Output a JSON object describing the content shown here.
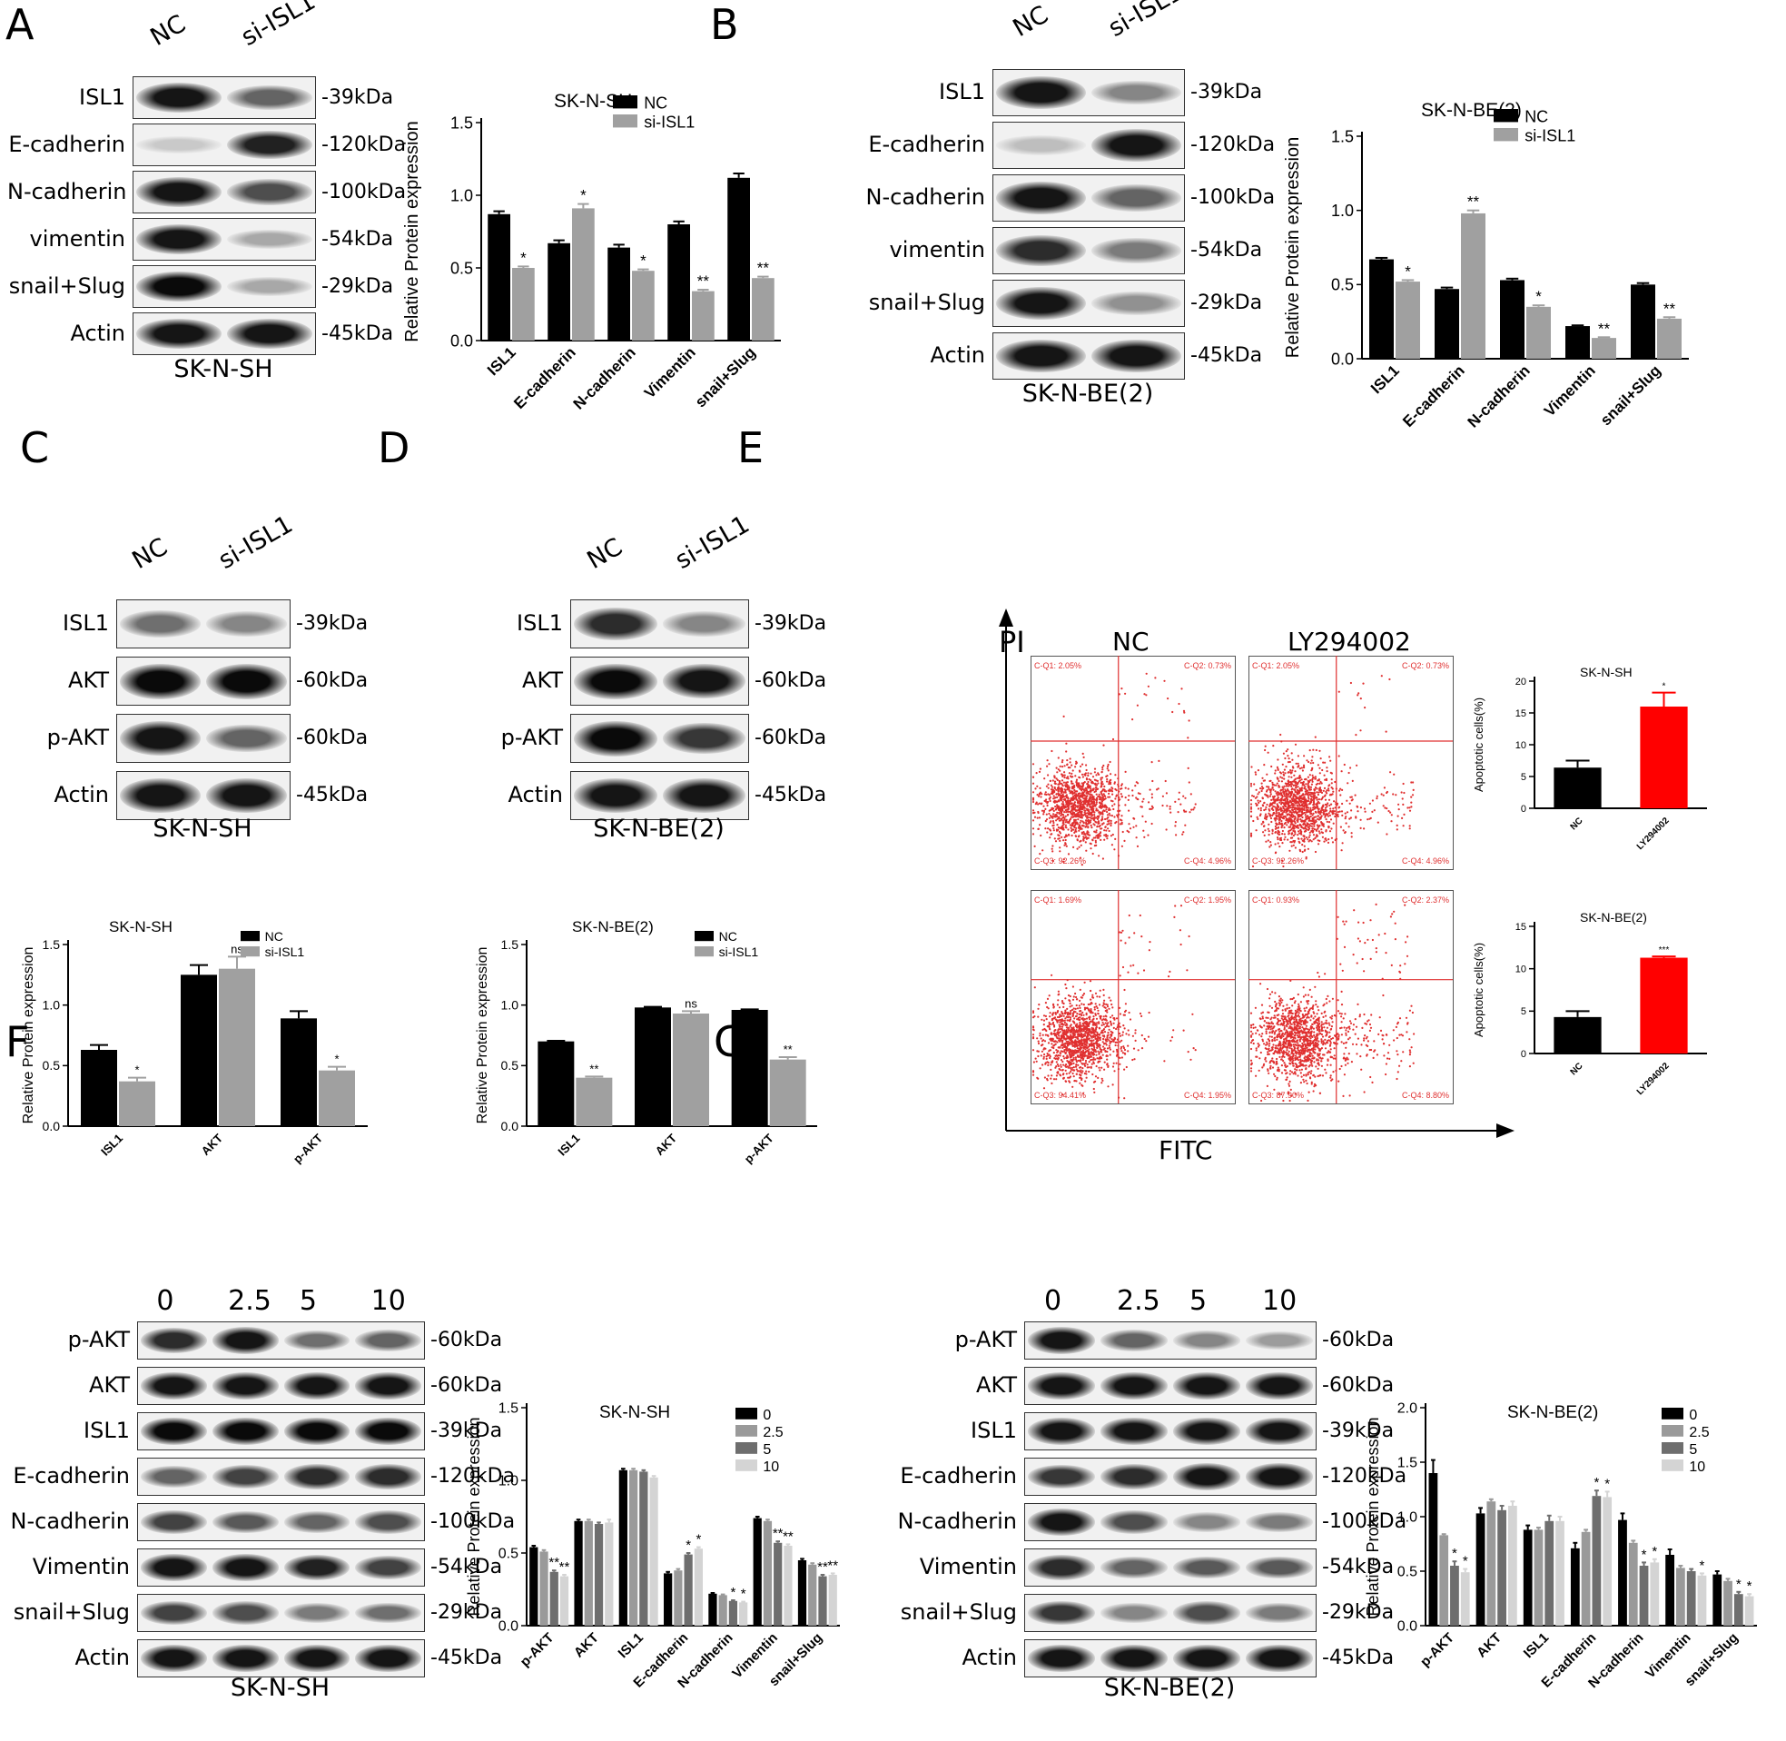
{
  "panels": [
    {
      "id": "A",
      "letter": "A",
      "cell_line": "SK-N-SH",
      "lanes": [
        "NC",
        "si-ISL1"
      ],
      "rows": [
        {
          "name": "ISL1",
          "size": "-39kDa",
          "bands": [
            0.95,
            0.6
          ]
        },
        {
          "name": "E-cadherin",
          "size": "-120kDa",
          "bands": [
            0.15,
            0.9
          ]
        },
        {
          "name": "N-cadherin",
          "size": "-100kDa",
          "bands": [
            0.95,
            0.7
          ]
        },
        {
          "name": "vimentin",
          "size": "-54kDa",
          "bands": [
            0.95,
            0.3
          ]
        },
        {
          "name": "snail+Slug",
          "size": "-29kDa",
          "bands": [
            1.0,
            0.3
          ]
        },
        {
          "name": "Actin",
          "size": "-45kDa",
          "bands": [
            0.95,
            0.95
          ]
        }
      ]
    },
    {
      "id": "B",
      "letter": "B",
      "cell_line": "SK-N-BE(2)",
      "lanes": [
        "NC",
        "si-ISL1"
      ],
      "rows": [
        {
          "name": "ISL1",
          "size": "-39kDa",
          "bands": [
            0.95,
            0.45
          ]
        },
        {
          "name": "E-cadherin",
          "size": "-120kDa",
          "bands": [
            0.2,
            0.95
          ]
        },
        {
          "name": "N-cadherin",
          "size": "-100kDa",
          "bands": [
            0.95,
            0.6
          ]
        },
        {
          "name": "vimentin",
          "size": "-54kDa",
          "bands": [
            0.85,
            0.5
          ]
        },
        {
          "name": "snail+Slug",
          "size": "-29kDa",
          "bands": [
            0.95,
            0.4
          ]
        },
        {
          "name": "Actin",
          "size": "-45kDa",
          "bands": [
            0.95,
            0.95
          ]
        }
      ]
    },
    {
      "id": "C",
      "letter": "C",
      "cell_line": "SK-N-SH",
      "lanes": [
        "NC",
        "si-ISL1"
      ],
      "rows": [
        {
          "name": "ISL1",
          "size": "-39kDa",
          "bands": [
            0.55,
            0.45
          ]
        },
        {
          "name": "AKT",
          "size": "-60kDa",
          "bands": [
            1.0,
            1.0
          ]
        },
        {
          "name": "p-AKT",
          "size": "-60kDa",
          "bands": [
            0.95,
            0.6
          ]
        },
        {
          "name": "Actin",
          "size": "-45kDa",
          "bands": [
            0.95,
            0.95
          ]
        }
      ]
    },
    {
      "id": "D",
      "letter": "D",
      "cell_line": "SK-N-BE(2)",
      "lanes": [
        "NC",
        "si-ISL1"
      ],
      "rows": [
        {
          "name": "ISL1",
          "size": "-39kDa",
          "bands": [
            0.85,
            0.45
          ]
        },
        {
          "name": "AKT",
          "size": "-60kDa",
          "bands": [
            1.0,
            0.95
          ]
        },
        {
          "name": "p-AKT",
          "size": "-60kDa",
          "bands": [
            1.0,
            0.8
          ]
        },
        {
          "name": "Actin",
          "size": "-45kDa",
          "bands": [
            0.95,
            0.95
          ]
        }
      ]
    },
    {
      "id": "F",
      "letter": "F",
      "cell_line": "SK-N-SH",
      "lanes": [
        "0",
        "2.5",
        "5",
        "10"
      ],
      "rows": [
        {
          "name": "p-AKT",
          "size": "-60kDa",
          "bands": [
            0.85,
            0.95,
            0.55,
            0.6
          ]
        },
        {
          "name": "AKT",
          "size": "-60kDa",
          "bands": [
            0.95,
            0.95,
            0.95,
            0.95
          ]
        },
        {
          "name": "ISL1",
          "size": "-39kDa",
          "bands": [
            1.0,
            1.0,
            1.0,
            1.0
          ]
        },
        {
          "name": "E-cadherin",
          "size": "-120kDa",
          "bands": [
            0.6,
            0.75,
            0.85,
            0.85
          ]
        },
        {
          "name": "N-cadherin",
          "size": "-100kDa",
          "bands": [
            0.75,
            0.65,
            0.6,
            0.7
          ]
        },
        {
          "name": "Vimentin",
          "size": "-54kDa",
          "bands": [
            0.95,
            0.95,
            0.9,
            0.75
          ]
        },
        {
          "name": "snail+Slug",
          "size": "-29kDa",
          "bands": [
            0.75,
            0.7,
            0.5,
            0.55
          ]
        },
        {
          "name": "Actin",
          "size": "-45kDa",
          "bands": [
            0.95,
            0.95,
            0.95,
            0.95
          ]
        }
      ]
    },
    {
      "id": "G",
      "letter": "G",
      "cell_line": "SK-N-BE(2)",
      "lanes": [
        "0",
        "2.5",
        "5",
        "10"
      ],
      "rows": [
        {
          "name": "p-AKT",
          "size": "-60kDa",
          "bands": [
            0.95,
            0.6,
            0.45,
            0.35
          ]
        },
        {
          "name": "AKT",
          "size": "-60kDa",
          "bands": [
            0.95,
            0.95,
            0.95,
            0.95
          ]
        },
        {
          "name": "ISL1",
          "size": "-39kDa",
          "bands": [
            0.95,
            0.95,
            0.95,
            0.95
          ]
        },
        {
          "name": "E-cadherin",
          "size": "-120kDa",
          "bands": [
            0.8,
            0.85,
            0.95,
            0.95
          ]
        },
        {
          "name": "N-cadherin",
          "size": "-100kDa",
          "bands": [
            0.95,
            0.7,
            0.45,
            0.5
          ]
        },
        {
          "name": "Vimentin",
          "size": "-54kDa",
          "bands": [
            0.85,
            0.6,
            0.65,
            0.65
          ]
        },
        {
          "name": "snail+Slug",
          "size": "-29kDa",
          "bands": [
            0.8,
            0.45,
            0.7,
            0.5
          ]
        },
        {
          "name": "Actin",
          "size": "-45kDa",
          "bands": [
            0.95,
            0.95,
            0.95,
            0.95
          ]
        }
      ]
    }
  ],
  "panel_E": {
    "letter": "E",
    "y_axis_label": "PI",
    "x_axis_label": "FITC",
    "col_labels": [
      "NC",
      "LY294002"
    ],
    "plots": [
      {
        "q1": "C-Q1: 2.05%",
        "q2": "C-Q2: 0.73%",
        "q3": "C-Q3: 92.26%",
        "q4": "C-Q4: 4.96%"
      },
      {
        "q1": "C-Q1: 2.05%",
        "q2": "C-Q2: 0.73%",
        "q3": "C-Q3: 92.26%",
        "q4": "C-Q4: 4.96%"
      },
      {
        "q1": "C-Q1: 1.69%",
        "q2": "C-Q2: 1.95%",
        "q3": "C-Q3: 94.41%",
        "q4": "C-Q4: 1.95%"
      },
      {
        "q1": "C-Q1: 0.93%",
        "q2": "C-Q2: 2.37%",
        "q3": "C-Q3: 87.90%",
        "q4": "C-Q4: 8.80%"
      }
    ]
  },
  "colors": {
    "black": "#000000",
    "grey": "#a0a0a0",
    "red": "#ff0000",
    "q_red": "#e03030"
  },
  "chart_data": [
    {
      "id": "A",
      "type": "bar",
      "title": "SK-N-SH",
      "ylabel": "Relative Protein expression",
      "ylim": [
        0,
        1.5
      ],
      "yticks": [
        "0.0",
        "0.5",
        "1.0",
        "1.5"
      ],
      "categories": [
        "ISL1",
        "E-cadherin",
        "N-cadherin",
        "Vimentin",
        "snail+Slug"
      ],
      "series": [
        {
          "name": "NC",
          "values": [
            0.87,
            0.67,
            0.64,
            0.8,
            1.12
          ],
          "errors": [
            0.02,
            0.02,
            0.02,
            0.02,
            0.03
          ]
        },
        {
          "name": "si-ISL1",
          "values": [
            0.5,
            0.91,
            0.48,
            0.34,
            0.43
          ],
          "errors": [
            0.01,
            0.03,
            0.01,
            0.01,
            0.01
          ]
        }
      ],
      "annotations": [
        [
          "",
          "*"
        ],
        [
          "",
          "*"
        ],
        [
          "",
          "*"
        ],
        [
          "",
          "**"
        ],
        [
          "",
          "**"
        ]
      ]
    },
    {
      "id": "B",
      "type": "bar",
      "title": "SK-N-BE(2)",
      "ylabel": "Relative Protein expression",
      "ylim": [
        0,
        1.5
      ],
      "yticks": [
        "0.0",
        "0.5",
        "1.0",
        "1.5"
      ],
      "categories": [
        "ISL1",
        "E-cadherin",
        "N-cadherin",
        "Vimentin",
        "snail+Slug"
      ],
      "series": [
        {
          "name": "NC",
          "values": [
            0.67,
            0.47,
            0.53,
            0.22,
            0.5
          ],
          "errors": [
            0.01,
            0.01,
            0.01,
            0.005,
            0.01
          ]
        },
        {
          "name": "si-ISL1",
          "values": [
            0.52,
            0.98,
            0.35,
            0.14,
            0.27
          ],
          "errors": [
            0.01,
            0.02,
            0.01,
            0.005,
            0.01
          ]
        }
      ],
      "annotations": [
        [
          "",
          "*"
        ],
        [
          "",
          "**"
        ],
        [
          "",
          "*"
        ],
        [
          "",
          "**"
        ],
        [
          "",
          "**"
        ]
      ]
    },
    {
      "id": "C",
      "type": "bar",
      "title": "SK-N-SH",
      "ylabel": "Relative Protein expression",
      "ylim": [
        0,
        1.5
      ],
      "yticks": [
        "0.0",
        "0.5",
        "1.0",
        "1.5"
      ],
      "categories": [
        "ISL1",
        "AKT",
        "p-AKT"
      ],
      "series": [
        {
          "name": "NC",
          "values": [
            0.63,
            1.25,
            0.89
          ],
          "errors": [
            0.04,
            0.08,
            0.06
          ]
        },
        {
          "name": "si-ISL1",
          "values": [
            0.37,
            1.3,
            0.46
          ],
          "errors": [
            0.03,
            0.1,
            0.03
          ]
        }
      ],
      "annotations": [
        [
          "",
          "*"
        ],
        [
          "",
          "ns"
        ],
        [
          "",
          "*"
        ]
      ]
    },
    {
      "id": "D",
      "type": "bar",
      "title": "SK-N-BE(2)",
      "ylabel": "Relative Protein expression",
      "ylim": [
        0,
        1.5
      ],
      "yticks": [
        "0.0",
        "0.5",
        "1.0",
        "1.5"
      ],
      "categories": [
        "ISL1",
        "AKT",
        "p-AKT"
      ],
      "series": [
        {
          "name": "NC",
          "values": [
            0.7,
            0.98,
            0.96
          ],
          "errors": [
            0.005,
            0.005,
            0.005
          ]
        },
        {
          "name": "si-ISL1",
          "values": [
            0.4,
            0.93,
            0.55
          ],
          "errors": [
            0.01,
            0.02,
            0.02
          ]
        }
      ],
      "annotations": [
        [
          "",
          "**"
        ],
        [
          "",
          "ns"
        ],
        [
          "",
          "**"
        ]
      ]
    },
    {
      "id": "E1",
      "type": "bar",
      "title": "SK-N-SH",
      "ylabel": "Apoptotic cells(%)",
      "ylim": [
        0,
        20
      ],
      "yticks": [
        "0",
        "5",
        "10",
        "15",
        "20"
      ],
      "categories": [
        "NC",
        "LY294002"
      ],
      "series": [
        {
          "name": "",
          "values": [
            6.4,
            16
          ],
          "errors": [
            1.1,
            2.2
          ],
          "colors": [
            "#000000",
            "#ff0000"
          ]
        }
      ],
      "annotations": [
        [
          "",
          ""
        ],
        [
          "*",
          ""
        ]
      ]
    },
    {
      "id": "E2",
      "type": "bar",
      "title": "SK-N-BE(2)",
      "ylabel": "Apoptotic cells(%)",
      "ylim": [
        0,
        15
      ],
      "yticks": [
        "0",
        "5",
        "10",
        "15"
      ],
      "categories": [
        "NC",
        "LY294002"
      ],
      "series": [
        {
          "name": "",
          "values": [
            4.3,
            11.3
          ],
          "errors": [
            0.7,
            0.15
          ],
          "colors": [
            "#000000",
            "#ff0000"
          ]
        }
      ],
      "annotations": [
        [
          "",
          ""
        ],
        [
          "***",
          ""
        ]
      ]
    },
    {
      "id": "F",
      "type": "bar",
      "title": "SK-N-SH",
      "ylabel": "Relative Protein expression",
      "ylim": [
        0,
        1.5
      ],
      "yticks": [
        "0.0",
        "0.5",
        "1.0",
        "1.5"
      ],
      "categories": [
        "p-AKT",
        "AKT",
        "ISL1",
        "E-cadherin",
        "N-cadherin",
        "Vimentin",
        "snail+Slug"
      ],
      "series": [
        {
          "name": "0",
          "values": [
            0.54,
            0.72,
            1.07,
            0.36,
            0.22,
            0.74,
            0.45
          ],
          "errors": [
            0.01,
            0.01,
            0.01,
            0.01,
            0.005,
            0.01,
            0.01
          ]
        },
        {
          "name": "2.5",
          "values": [
            0.51,
            0.72,
            1.07,
            0.38,
            0.21,
            0.72,
            0.42
          ],
          "errors": [
            0.01,
            0.01,
            0.01,
            0.01,
            0.005,
            0.01,
            0.01
          ]
        },
        {
          "name": "5",
          "values": [
            0.37,
            0.7,
            1.06,
            0.49,
            0.17,
            0.57,
            0.34
          ],
          "errors": [
            0.01,
            0.01,
            0.01,
            0.01,
            0.005,
            0.01,
            0.01
          ]
        },
        {
          "name": "10",
          "values": [
            0.34,
            0.71,
            1.02,
            0.53,
            0.16,
            0.55,
            0.35
          ],
          "errors": [
            0.01,
            0.02,
            0.01,
            0.01,
            0.005,
            0.01,
            0.01
          ]
        }
      ],
      "annotations": [
        [
          "",
          "",
          "**",
          "**"
        ],
        [
          "",
          "",
          "",
          ""
        ],
        [
          "",
          "",
          "",
          ""
        ],
        [
          "",
          "",
          "*",
          "*"
        ],
        [
          "",
          "",
          "*",
          "*"
        ],
        [
          "",
          "",
          "**",
          "**"
        ],
        [
          "",
          "",
          "**",
          "**"
        ]
      ]
    },
    {
      "id": "G",
      "type": "bar",
      "title": "SK-N-BE(2)",
      "ylabel": "Relative Protein expression",
      "ylim": [
        0,
        2.0
      ],
      "yticks": [
        "0.0",
        "0.5",
        "1.0",
        "1.5",
        "2.0"
      ],
      "categories": [
        "p-AKT",
        "AKT",
        "ISL1",
        "E-cadherin",
        "N-cadherin",
        "Vimentin",
        "snail+Slug"
      ],
      "series": [
        {
          "name": "0",
          "values": [
            1.4,
            1.03,
            0.88,
            0.71,
            0.97,
            0.65,
            0.47
          ],
          "errors": [
            0.12,
            0.05,
            0.04,
            0.05,
            0.06,
            0.05,
            0.03
          ]
        },
        {
          "name": "2.5",
          "values": [
            0.83,
            1.14,
            0.88,
            0.86,
            0.76,
            0.53,
            0.41
          ],
          "errors": [
            0.01,
            0.02,
            0.02,
            0.02,
            0.02,
            0.02,
            0.02
          ]
        },
        {
          "name": "5",
          "values": [
            0.55,
            1.06,
            0.96,
            1.19,
            0.55,
            0.5,
            0.29
          ],
          "errors": [
            0.04,
            0.04,
            0.05,
            0.05,
            0.03,
            0.02,
            0.02
          ]
        },
        {
          "name": "10",
          "values": [
            0.49,
            1.1,
            0.96,
            1.18,
            0.58,
            0.46,
            0.27
          ],
          "errors": [
            0.03,
            0.04,
            0.04,
            0.05,
            0.03,
            0.02,
            0.02
          ]
        }
      ],
      "annotations": [
        [
          "",
          "",
          "*",
          "*"
        ],
        [
          "",
          "",
          "",
          ""
        ],
        [
          "",
          "",
          "",
          ""
        ],
        [
          "",
          "",
          "*",
          "*"
        ],
        [
          "",
          "",
          "*",
          "*"
        ],
        [
          "",
          "",
          "",
          "*"
        ],
        [
          "",
          "",
          "*",
          "*"
        ]
      ]
    }
  ]
}
